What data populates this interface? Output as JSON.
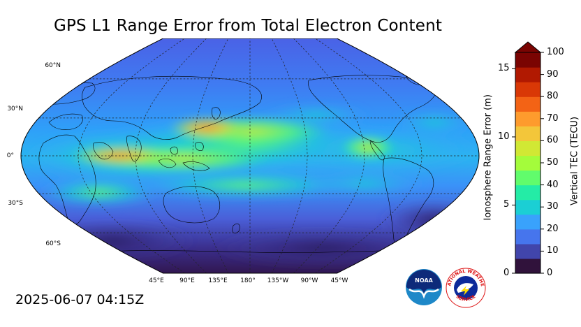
{
  "title": "GPS L1 Range Error from Total Electron Content",
  "timestamp": "2025-06-07 04:15Z",
  "map": {
    "projection": "robinson",
    "lat_labels": [
      "60°N",
      "30°N",
      "0°",
      "30°S",
      "60°S"
    ],
    "lon_labels": [
      "45°E",
      "90°E",
      "135°E",
      "180°",
      "135°W",
      "90°W",
      "45°W"
    ],
    "ocean_base_color": "#3b5fe0",
    "gridlines": true
  },
  "colorbar": {
    "left_axis": {
      "label": "Ionosphere Range Error (m)",
      "ticks": [
        "0",
        "5",
        "10",
        "15"
      ]
    },
    "right_axis": {
      "label": "Vertical TEC (TECU)",
      "ticks": [
        "0",
        "10",
        "20",
        "30",
        "40",
        "50",
        "60",
        "70",
        "80",
        "90",
        "100"
      ]
    },
    "range": [
      0,
      100
    ],
    "extend": "max",
    "colors": [
      "#30123b",
      "#4145ab",
      "#4675ed",
      "#39a2fc",
      "#1bcfd4",
      "#24eca6",
      "#61fc6c",
      "#a4fc3b",
      "#d1e834",
      "#f3c63a",
      "#fe9b2d",
      "#f36315",
      "#d93806",
      "#b11901",
      "#7a0402"
    ]
  },
  "logos": {
    "noaa": {
      "text": "NOAA"
    },
    "nws": {
      "text_top": "NATIONAL WEATHER",
      "text_bottom": "SERVICE"
    }
  }
}
